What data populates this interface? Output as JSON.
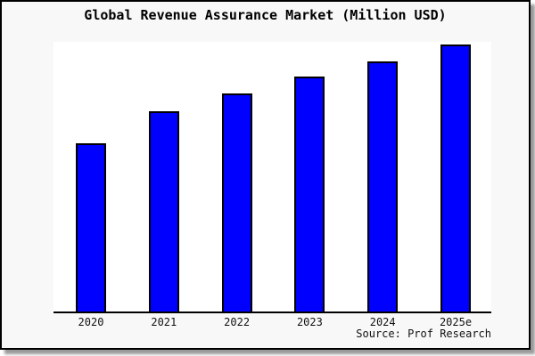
{
  "chart": {
    "title": "Global Revenue Assurance Market (Million USD)",
    "source": "Source: Prof Research",
    "colors": {
      "bar_fill": "#0000ff",
      "bar_border": "#000000",
      "frame_background": "#f8f8f8",
      "plot_background": "#ffffff",
      "axis": "#000000",
      "text": "#000000",
      "shadow": "#9a9a9a"
    }
  },
  "chart_data": {
    "type": "bar",
    "title": "Global Revenue Assurance Market (Million USD)",
    "categories": [
      "2020",
      "2021",
      "2022",
      "2023",
      "2024",
      "2025e"
    ],
    "values": [
      189,
      225,
      245,
      264,
      281,
      300
    ],
    "xlabel": "",
    "ylabel": "",
    "ylim": [
      0,
      303
    ],
    "y_tick_labels": [],
    "grid": false,
    "legend": false,
    "bar_color": "#0000ff"
  }
}
